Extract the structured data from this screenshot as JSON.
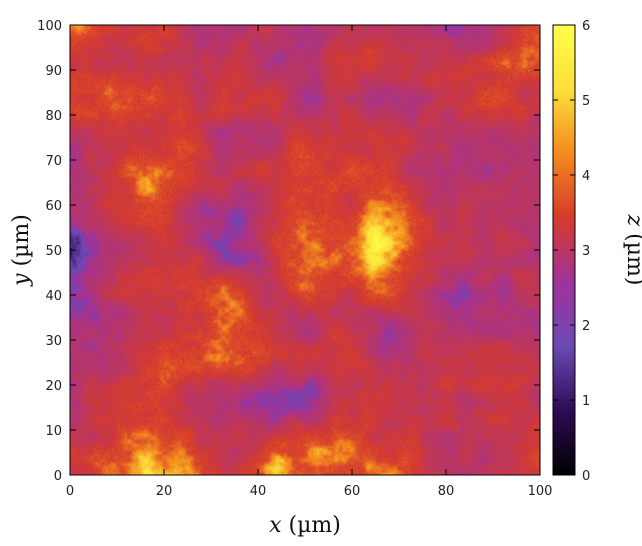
{
  "chart_data": {
    "type": "heatmap",
    "title": "",
    "xlabel_var": "x",
    "xlabel_unit": " (µm)",
    "ylabel_var": "y",
    "ylabel_unit": " (µm)",
    "colorbar_label_var": "z",
    "colorbar_label_unit": " (µm)",
    "xlim": [
      0,
      100
    ],
    "ylim": [
      0,
      100
    ],
    "zlim": [
      0,
      6
    ],
    "x_ticks": [
      "0",
      "20",
      "40",
      "60",
      "80",
      "100"
    ],
    "y_ticks": [
      "0",
      "10",
      "20",
      "30",
      "40",
      "50",
      "60",
      "70",
      "80",
      "90",
      "100"
    ],
    "colorbar_ticks": [
      "0",
      "1",
      "2",
      "3",
      "4",
      "5",
      "6"
    ],
    "colormap": [
      "#000000",
      "#2e0b55",
      "#6a4ab3",
      "#a0339a",
      "#d53a2c",
      "#f38a1e",
      "#fbe03a",
      "#ffff4a"
    ],
    "grid": false,
    "field_description_values": {
      "background_level_um": 2.3,
      "high_region_level_um": 3.5,
      "peak_level_um": 5.6,
      "low_pit_level_um": 0.7
    }
  }
}
